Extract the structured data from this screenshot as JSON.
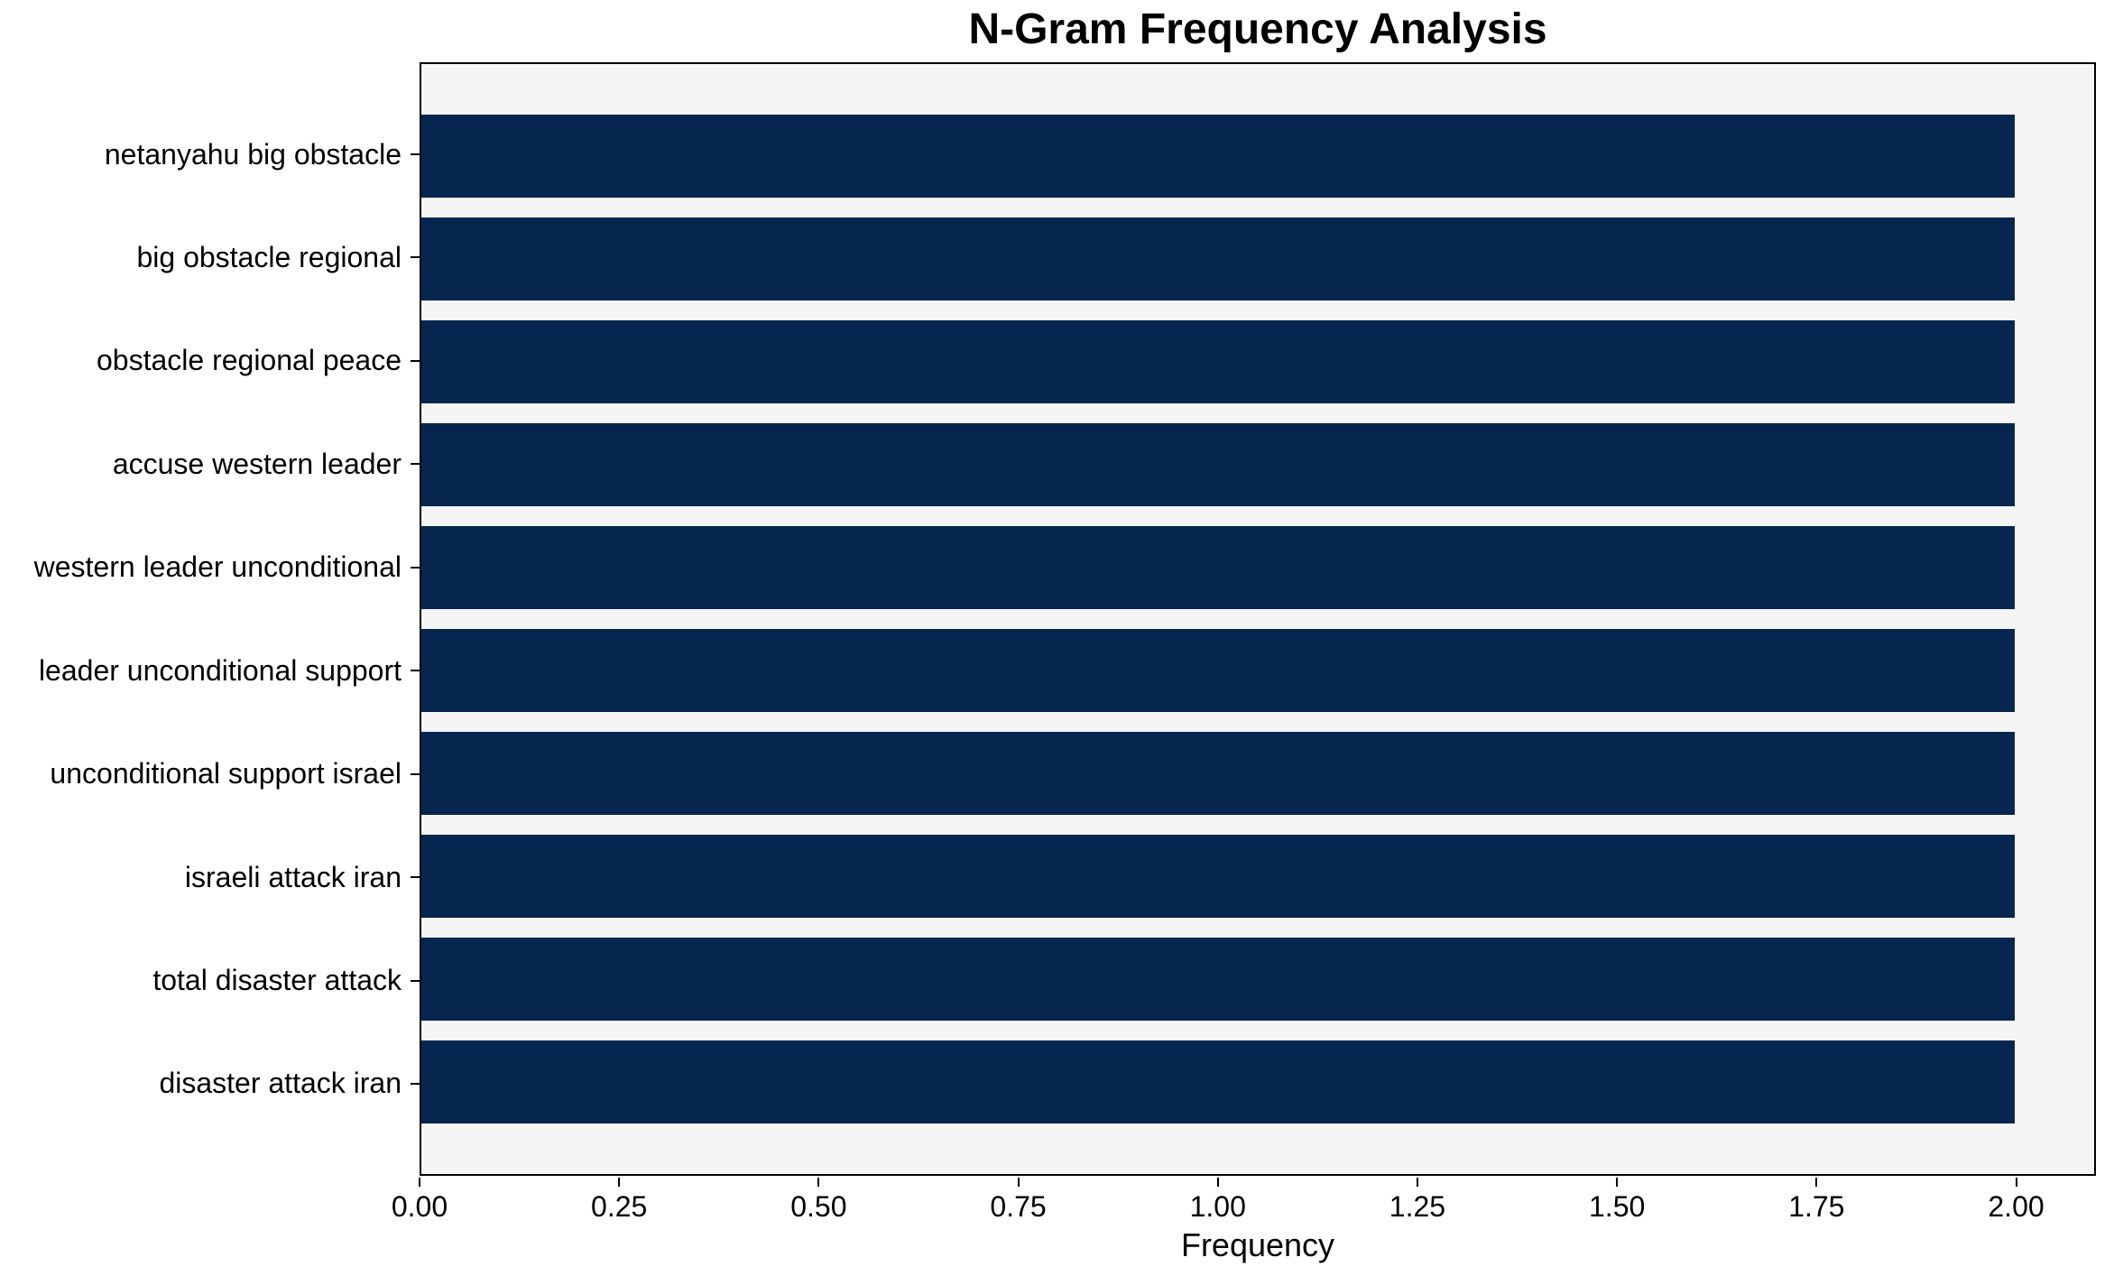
{
  "title": "N-Gram Frequency Analysis",
  "colors": {
    "bar": "#06264f",
    "plot_background": "#f5f5f5",
    "figure_background": "#ffffff",
    "spine": "#000000",
    "text": "#000000"
  },
  "chart_data": {
    "type": "bar",
    "orientation": "horizontal",
    "title": "N-Gram Frequency Analysis",
    "xlabel": "Frequency",
    "ylabel": "",
    "categories": [
      "netanyahu big obstacle",
      "big obstacle regional",
      "obstacle regional peace",
      "accuse western leader",
      "western leader unconditional",
      "leader unconditional support",
      "unconditional support israel",
      "israeli attack iran",
      "total disaster attack",
      "disaster attack iran"
    ],
    "values": [
      2,
      2,
      2,
      2,
      2,
      2,
      2,
      2,
      2,
      2
    ],
    "xlim": [
      0,
      2.1
    ],
    "xticks": [
      {
        "value": 0.0,
        "label": "0.00"
      },
      {
        "value": 0.25,
        "label": "0.25"
      },
      {
        "value": 0.5,
        "label": "0.50"
      },
      {
        "value": 0.75,
        "label": "0.75"
      },
      {
        "value": 1.0,
        "label": "1.00"
      },
      {
        "value": 1.25,
        "label": "1.25"
      },
      {
        "value": 1.5,
        "label": "1.50"
      },
      {
        "value": 1.75,
        "label": "1.75"
      },
      {
        "value": 2.0,
        "label": "2.00"
      }
    ],
    "grid": false,
    "legend": null
  }
}
